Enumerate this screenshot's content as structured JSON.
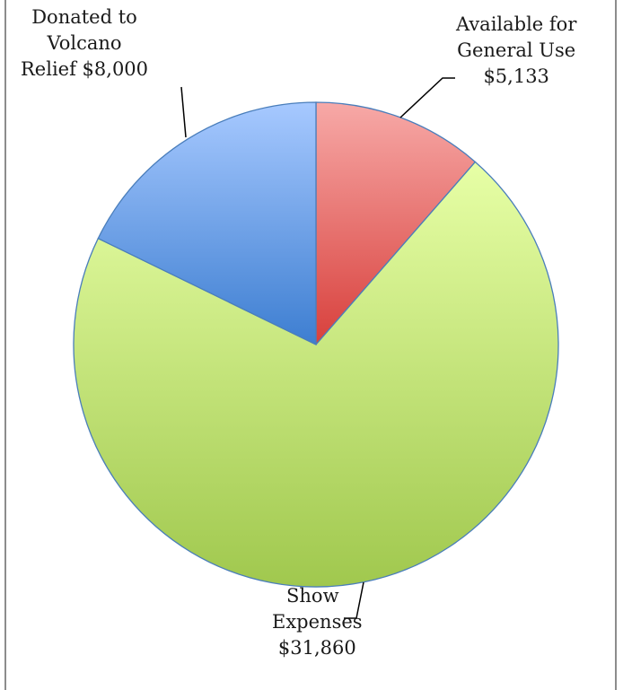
{
  "chart_data": {
    "type": "pie",
    "slices": [
      {
        "label_lines": [
          "Available for",
          "General Use",
          "$5,133"
        ],
        "value": 5133,
        "color_top": "#f7a9a7",
        "color_bottom": "#d8403c"
      },
      {
        "label_lines": [
          "Show",
          "Expenses",
          "$31,860"
        ],
        "value": 31860,
        "color_top": "#e7ffa6",
        "color_bottom": "#a0c84e"
      },
      {
        "label_lines": [
          "Donated to",
          "Volcano",
          "Relief $8,000"
        ],
        "value": 8000,
        "color_top": "#a7c9ff",
        "color_bottom": "#3d7ed1"
      }
    ],
    "start_angle_deg": 0,
    "direction": "clockwise",
    "slice_stroke": "#4a7ebb",
    "leader_line_color": "#000000"
  }
}
